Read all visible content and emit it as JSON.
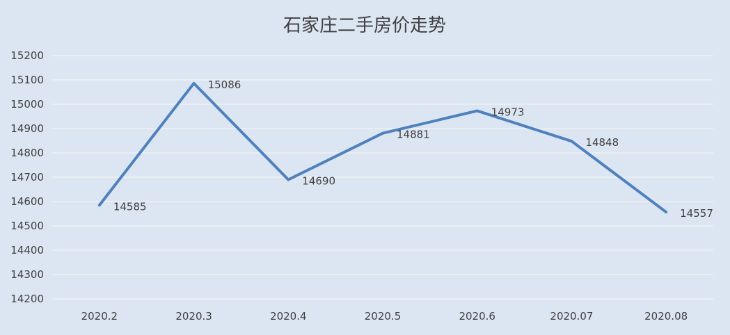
{
  "chart_data": {
    "type": "line",
    "title": "石家庄二手房价走势",
    "categories": [
      "2020.2",
      "2020.3",
      "2020.4",
      "2020.5",
      "2020.6",
      "2020.07",
      "2020.08"
    ],
    "series": [
      {
        "values": [
          14585,
          15086,
          14690,
          14881,
          14973,
          14848,
          14557
        ]
      }
    ],
    "data_labels": [
      "14585",
      "15086",
      "14690",
      "14881",
      "14973",
      "14848",
      "14557"
    ],
    "y_ticks": [
      "14200",
      "14300",
      "14400",
      "14500",
      "14600",
      "14700",
      "14800",
      "14900",
      "15000",
      "15100",
      "15200"
    ],
    "ylim": [
      14200,
      15200
    ],
    "grid": true,
    "legend": "none",
    "colors": {
      "background": "#dce6f2",
      "line": "#4f81bd",
      "grid": "#f2f2f2",
      "text": "#404040"
    }
  }
}
